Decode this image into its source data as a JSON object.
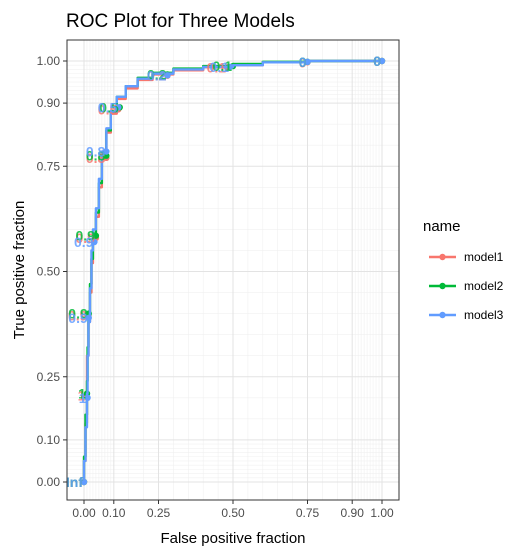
{
  "chart_data": {
    "type": "line",
    "title": "ROC Plot for Three Models",
    "xlabel": "False positive fraction",
    "ylabel": "True positive fraction",
    "xlim": [
      0,
      1
    ],
    "ylim": [
      0,
      1
    ],
    "x_ticks": [
      0.0,
      0.1,
      0.25,
      0.5,
      0.75,
      0.9,
      1.0
    ],
    "x_tick_labels": [
      "0.00",
      "0.10",
      "0.25",
      "0.50",
      "0.75",
      "0.90",
      "1.00"
    ],
    "y_ticks": [
      0.0,
      0.1,
      0.25,
      0.5,
      0.75,
      0.9,
      1.0
    ],
    "y_tick_labels": [
      "0.00",
      "0.10",
      "0.25",
      "0.50",
      "0.75",
      "0.90",
      "1.00"
    ],
    "grid": true,
    "legend": {
      "title": "name",
      "position": "right"
    },
    "series": [
      {
        "name": "model1",
        "color": "#F8766D",
        "points": [
          [
            0,
            0
          ],
          [
            0.005,
            0.05
          ],
          [
            0.01,
            0.14
          ],
          [
            0.01,
            0.22
          ],
          [
            0.015,
            0.3
          ],
          [
            0.02,
            0.38
          ],
          [
            0.025,
            0.45
          ],
          [
            0.03,
            0.52
          ],
          [
            0.04,
            0.58
          ],
          [
            0.05,
            0.63
          ],
          [
            0.06,
            0.7
          ],
          [
            0.075,
            0.77
          ],
          [
            0.09,
            0.83
          ],
          [
            0.11,
            0.875
          ],
          [
            0.14,
            0.91
          ],
          [
            0.18,
            0.935
          ],
          [
            0.23,
            0.955
          ],
          [
            0.3,
            0.968
          ],
          [
            0.4,
            0.978
          ],
          [
            0.5,
            0.985
          ],
          [
            0.6,
            0.99
          ],
          [
            0.75,
            0.997
          ],
          [
            0.9,
            1.0
          ],
          [
            1.0,
            1.0
          ]
        ],
        "cutoffs": [
          {
            "x": 0.0,
            "y": 0.0,
            "label": "Inf"
          },
          {
            "x": 0.008,
            "y": 0.205,
            "label": "1"
          },
          {
            "x": 0.015,
            "y": 0.395,
            "label": "0.9"
          },
          {
            "x": 0.04,
            "y": 0.58,
            "label": "0.9"
          },
          {
            "x": 0.075,
            "y": 0.77,
            "label": "0.8"
          },
          {
            "x": 0.115,
            "y": 0.885,
            "label": "0.5"
          },
          {
            "x": 0.28,
            "y": 0.965,
            "label": "0.2"
          },
          {
            "x": 0.48,
            "y": 0.985,
            "label": "0.1"
          },
          {
            "x": 0.75,
            "y": 0.997,
            "label": "0"
          },
          {
            "x": 1.0,
            "y": 1.0,
            "label": "0"
          }
        ]
      },
      {
        "name": "model2",
        "color": "#00BA38",
        "points": [
          [
            0,
            0
          ],
          [
            0.005,
            0.06
          ],
          [
            0.01,
            0.16
          ],
          [
            0.012,
            0.24
          ],
          [
            0.015,
            0.32
          ],
          [
            0.02,
            0.4
          ],
          [
            0.025,
            0.47
          ],
          [
            0.03,
            0.53
          ],
          [
            0.04,
            0.59
          ],
          [
            0.05,
            0.64
          ],
          [
            0.06,
            0.71
          ],
          [
            0.075,
            0.78
          ],
          [
            0.09,
            0.835
          ],
          [
            0.11,
            0.88
          ],
          [
            0.14,
            0.915
          ],
          [
            0.18,
            0.94
          ],
          [
            0.23,
            0.96
          ],
          [
            0.3,
            0.972
          ],
          [
            0.4,
            0.982
          ],
          [
            0.5,
            0.988
          ],
          [
            0.6,
            0.993
          ],
          [
            0.75,
            0.998
          ],
          [
            0.9,
            1.0
          ],
          [
            1.0,
            1.0
          ]
        ],
        "cutoffs": [
          {
            "x": 0.0,
            "y": 0.0,
            "label": "Inf"
          },
          {
            "x": 0.01,
            "y": 0.21,
            "label": "1"
          },
          {
            "x": 0.016,
            "y": 0.4,
            "label": "0.9"
          },
          {
            "x": 0.04,
            "y": 0.585,
            "label": "0.9"
          },
          {
            "x": 0.075,
            "y": 0.775,
            "label": "0.8"
          },
          {
            "x": 0.12,
            "y": 0.89,
            "label": "0.5"
          },
          {
            "x": 0.28,
            "y": 0.968,
            "label": "0.2"
          },
          {
            "x": 0.5,
            "y": 0.988,
            "label": "0.1"
          },
          {
            "x": 0.75,
            "y": 0.998,
            "label": "0"
          },
          {
            "x": 1.0,
            "y": 1.0,
            "label": "0"
          }
        ]
      },
      {
        "name": "model3",
        "color": "#619CFF",
        "points": [
          [
            0,
            0
          ],
          [
            0.005,
            0.05
          ],
          [
            0.01,
            0.13
          ],
          [
            0.012,
            0.21
          ],
          [
            0.015,
            0.3
          ],
          [
            0.02,
            0.38
          ],
          [
            0.025,
            0.46
          ],
          [
            0.03,
            0.55
          ],
          [
            0.04,
            0.6
          ],
          [
            0.05,
            0.65
          ],
          [
            0.06,
            0.72
          ],
          [
            0.075,
            0.785
          ],
          [
            0.09,
            0.84
          ],
          [
            0.11,
            0.88
          ],
          [
            0.14,
            0.915
          ],
          [
            0.18,
            0.94
          ],
          [
            0.23,
            0.958
          ],
          [
            0.3,
            0.97
          ],
          [
            0.4,
            0.98
          ],
          [
            0.5,
            0.986
          ],
          [
            0.6,
            0.99
          ],
          [
            0.75,
            0.997
          ],
          [
            0.9,
            1.0
          ],
          [
            1.0,
            1.0
          ]
        ],
        "cutoffs": [
          {
            "x": 0.0,
            "y": 0.0,
            "label": "Inf"
          },
          {
            "x": 0.012,
            "y": 0.2,
            "label": "1"
          },
          {
            "x": 0.016,
            "y": 0.39,
            "label": "0.9"
          },
          {
            "x": 0.035,
            "y": 0.57,
            "label": "0.9"
          },
          {
            "x": 0.075,
            "y": 0.785,
            "label": "0.8"
          },
          {
            "x": 0.115,
            "y": 0.89,
            "label": "0.5"
          },
          {
            "x": 0.28,
            "y": 0.966,
            "label": "0.2"
          },
          {
            "x": 0.49,
            "y": 0.986,
            "label": "0.1"
          },
          {
            "x": 0.75,
            "y": 0.998,
            "label": "0"
          },
          {
            "x": 1.0,
            "y": 1.0,
            "label": "0"
          }
        ]
      }
    ]
  }
}
